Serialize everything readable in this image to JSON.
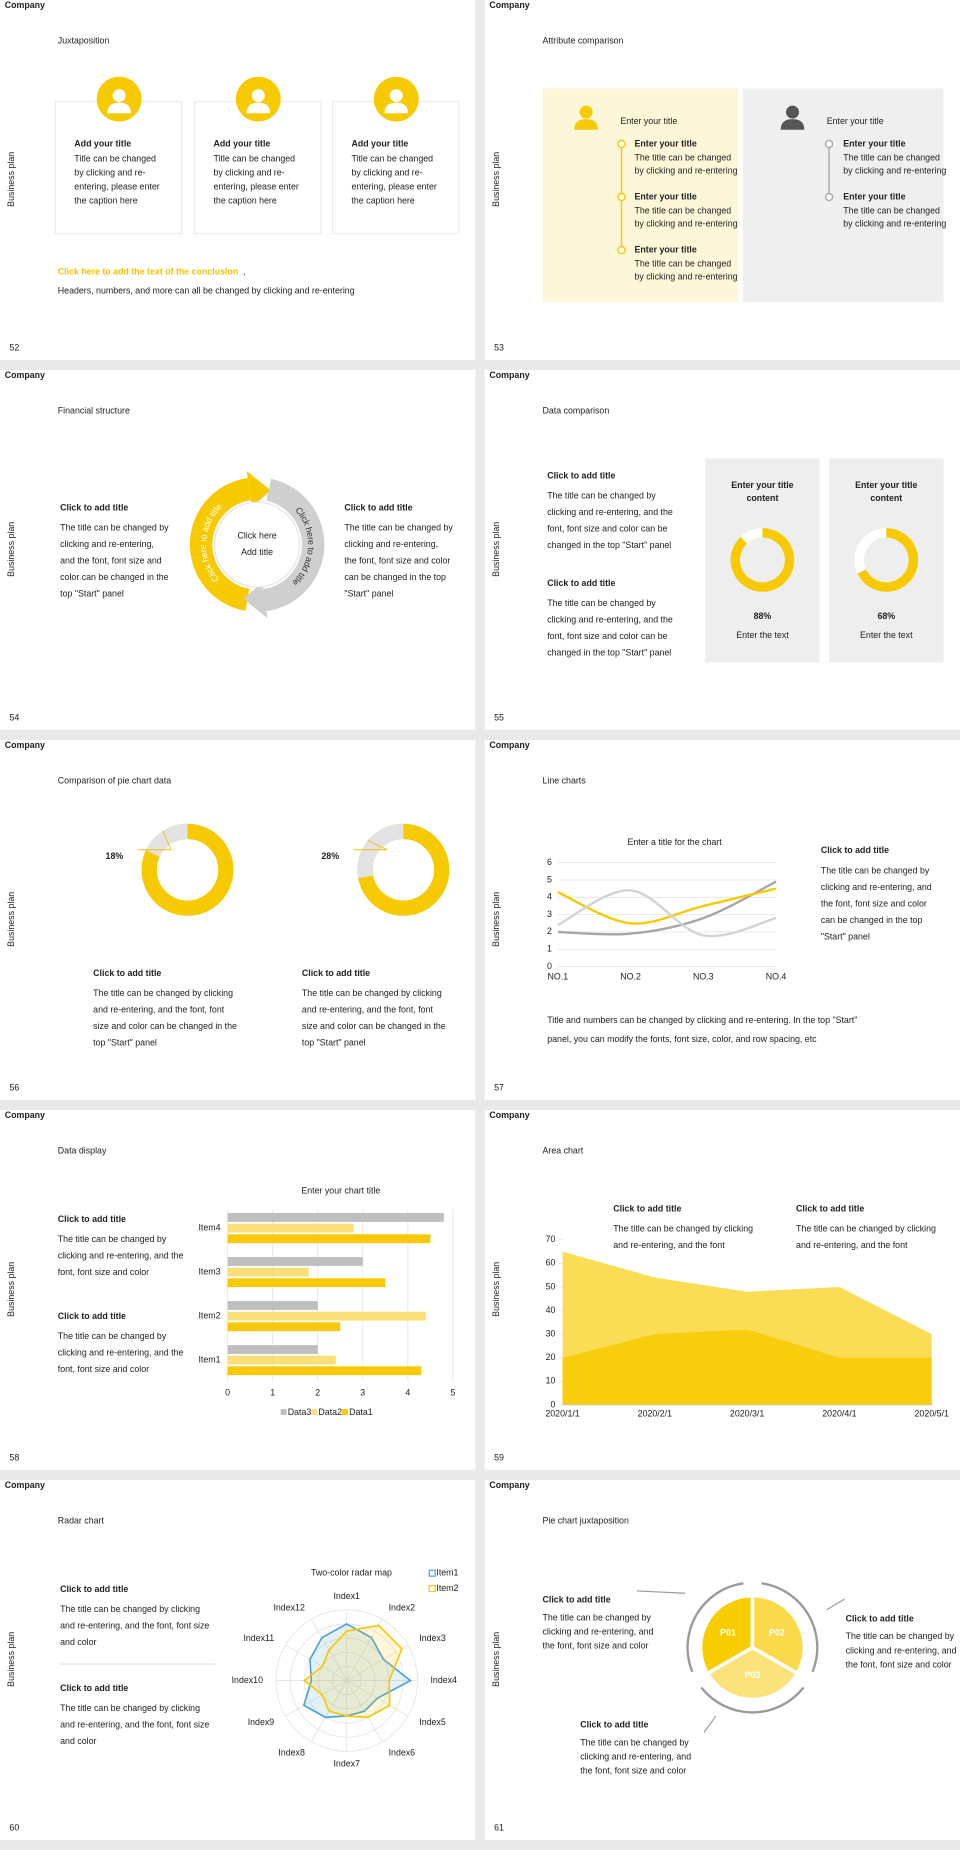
{
  "company_label": "Company",
  "side_label": "Business plan",
  "slides": [
    {
      "number": "52",
      "title": "Juxtaposition",
      "cards": [
        {
          "heading": "Add your title",
          "body": [
            "Title can be changed",
            "by clicking and re-",
            "entering, please enter",
            "the caption here"
          ]
        },
        {
          "heading": "Add your title",
          "body": [
            "Title can be changed",
            "by clicking and re-",
            "entering, please enter",
            "the caption here"
          ]
        },
        {
          "heading": "Add your title",
          "body": [
            "Title can be changed",
            "by clicking and re-",
            "entering, please enter",
            "the caption here"
          ]
        }
      ],
      "conclusion": "Click here to add the text of the conclusion",
      "conclusion_mark": ",",
      "note": "Headers, numbers, and more can all be changed by clicking and re-entering"
    },
    {
      "number": "53",
      "title": "Attribute comparison",
      "panels": [
        {
          "heading": "Enter your title",
          "items": [
            {
              "title": "Enter your title",
              "body": [
                "The title can be changed",
                "by clicking and re-entering"
              ]
            },
            {
              "title": "Enter your title",
              "body": [
                "The title can be changed",
                "by clicking and re-entering"
              ]
            },
            {
              "title": "Enter your title",
              "body": [
                "The title can be changed",
                "by clicking and re-entering"
              ]
            }
          ]
        },
        {
          "heading": "Enter your title",
          "items": [
            {
              "title": "Enter your title",
              "body": [
                "The title can be changed",
                "by clicking and re-entering"
              ]
            },
            {
              "title": "Enter your title",
              "body": [
                "The title can be changed",
                "by clicking and re-entering"
              ]
            }
          ]
        }
      ]
    },
    {
      "number": "54",
      "title": "Financial structure",
      "blocks": [
        {
          "heading": "Click to add title",
          "body": [
            "The title can be changed by",
            "clicking and re-entering,",
            "and the font, font size and",
            "color can be changed in the",
            "top \"Start\" panel"
          ]
        },
        {
          "heading": "Click to add title",
          "body": [
            "The title can be changed by",
            "clicking and re-entering,",
            "the font, font size and color",
            "can be changed in the top",
            "\"Start\" panel"
          ]
        }
      ],
      "ring_text": [
        "Click here to add title",
        "Click here to add title"
      ],
      "center": [
        "Click here",
        "Add title"
      ]
    },
    {
      "number": "55",
      "title": "Data comparison",
      "blocks": [
        {
          "heading": "Click to add title",
          "body": [
            "The title can be changed by",
            "clicking and re-entering, and the",
            "font, font size and color can be",
            "changed in the top \"Start\" panel"
          ]
        },
        {
          "heading": "Click to add title",
          "body": [
            "The title can be changed by",
            "clicking and re-entering, and the",
            "font, font size and color can be",
            "changed in the top \"Start\" panel"
          ]
        }
      ],
      "cards": [
        {
          "heading": [
            "Enter your title",
            "content"
          ],
          "value": 88,
          "value_label": "88%",
          "caption": "Enter the text"
        },
        {
          "heading": [
            "Enter your title",
            "content"
          ],
          "value": 68,
          "value_label": "68%",
          "caption": "Enter the text"
        }
      ]
    },
    {
      "number": "56",
      "title": "Comparison of pie chart data",
      "donuts": [
        {
          "value": 18,
          "value_label": "18%",
          "heading": "Click to add title",
          "body": [
            "The title can be changed by clicking",
            "and re-entering, and the font, font",
            "size and color can be changed in the",
            "top \"Start\" panel"
          ]
        },
        {
          "value": 28,
          "value_label": "28%",
          "heading": "Click to add title",
          "body": [
            "The title can be changed by clicking",
            "and re-entering, and the font, font",
            "size and color can be changed in the",
            "top \"Start\" panel"
          ]
        }
      ]
    },
    {
      "number": "57",
      "title": "Line charts",
      "chart": {
        "type": "line",
        "title": "Enter a title for the chart",
        "categories": [
          "NO.1",
          "NO.2",
          "NO.3",
          "NO.4"
        ],
        "series": [
          {
            "color": "#a6a6a6",
            "values": [
              2,
              1.9,
              2.8,
              4.9
            ]
          },
          {
            "color": "#f6c900",
            "values": [
              4.3,
              2.5,
              3.5,
              4.5
            ]
          },
          {
            "color": "#d3d3d3",
            "values": [
              2.4,
              4.4,
              1.8,
              2.8
            ]
          }
        ],
        "ylim": [
          0,
          6
        ],
        "yticks": [
          0,
          1,
          2,
          3,
          4,
          5,
          6
        ],
        "grid": true
      },
      "block": {
        "heading": "Click to add title",
        "body": [
          "The title can be changed by",
          "clicking and re-entering, and",
          "the font, font size and color",
          "can be changed in the top",
          "\"Start\" panel"
        ]
      },
      "note": [
        "Title and numbers can be changed by clicking and re-entering. In the top \"Start\"",
        "panel, you can modify the fonts, font size, color, and row spacing, etc"
      ]
    },
    {
      "number": "58",
      "title": "Data display",
      "blocks": [
        {
          "heading": "Click to add title",
          "body": [
            "The title can be changed by",
            "clicking and re-entering, and the",
            "font, font size and color"
          ]
        },
        {
          "heading": "Click to add title",
          "body": [
            "The title can be changed by",
            "clicking and re-entering, and the",
            "font, font size and color"
          ]
        }
      ],
      "chart": {
        "type": "bar",
        "orientation": "horizontal",
        "title": "Enter your chart title",
        "categories": [
          "Item1",
          "Item2",
          "Item3",
          "Item4"
        ],
        "series": [
          {
            "name": "Data3",
            "color": "#bfbfbf",
            "values": [
              2,
              2,
              3,
              4.8
            ]
          },
          {
            "name": "Data2",
            "color": "#fbe07a",
            "values": [
              2.4,
              4.4,
              1.8,
              2.8
            ]
          },
          {
            "name": "Data1",
            "color": "#f6c900",
            "values": [
              4.3,
              2.5,
              3.5,
              4.5
            ]
          }
        ],
        "xlim": [
          0,
          5
        ],
        "xticks": [
          0,
          1,
          2,
          3,
          4,
          5
        ],
        "grid": true
      }
    },
    {
      "number": "59",
      "title": "Area chart",
      "blocks": [
        {
          "heading": "Click to add title",
          "body": [
            "The title can be changed by clicking",
            "and re-entering, and the font"
          ]
        },
        {
          "heading": "Click to add title",
          "body": [
            "The title can be changed by clicking",
            "and re-entering, and the font"
          ]
        }
      ],
      "chart": {
        "type": "area",
        "categories": [
          "2020/1/1",
          "2020/2/1",
          "2020/3/1",
          "2020/4/1",
          "2020/5/1"
        ],
        "series": [
          {
            "color": "#fbdd55",
            "values": [
              65,
              54,
              48,
              50,
              30
            ]
          },
          {
            "color": "#f8cd0e",
            "values": [
              20,
              30,
              32,
              20,
              20
            ]
          }
        ],
        "ylim": [
          0,
          70
        ],
        "yticks": [
          0,
          10,
          20,
          30,
          40,
          50,
          60,
          70
        ]
      }
    },
    {
      "number": "60",
      "title": "Radar chart",
      "blocks": [
        {
          "heading": "Click to add title",
          "body": [
            "The title can be changed by clicking",
            "and re-entering, and the font, font size",
            "and color"
          ]
        },
        {
          "heading": "Click to add title",
          "body": [
            "The title can be changed by clicking",
            "and re-entering, and the font, font size",
            "and color"
          ]
        }
      ],
      "chart": {
        "type": "radar",
        "title": "Two-color radar map",
        "categories": [
          "Index1",
          "Index2",
          "Index3",
          "Index4",
          "Index5",
          "Index6",
          "Index7",
          "Index8",
          "Index9",
          "Index10",
          "Index11",
          "Index12"
        ],
        "series": [
          {
            "name": "Item1",
            "color": "#4ba3d6",
            "values": [
              4,
              3.5,
              3,
              4.5,
              2.5,
              2.5,
              2.5,
              3,
              3.5,
              2.5,
              3,
              3.5
            ]
          },
          {
            "name": "Item2",
            "color": "#f6c900",
            "values": [
              3.5,
              4.5,
              4.5,
              3,
              3.5,
              3,
              2.5,
              2.5,
              2,
              3,
              2,
              2.5
            ]
          }
        ],
        "rlim": [
          0,
          5
        ]
      }
    },
    {
      "number": "61",
      "title": "Pie chart juxtaposition",
      "blocks": [
        {
          "heading": "Click to add title",
          "body": [
            "The title can be changed by",
            "clicking and re-entering, and",
            "the font, font size and color"
          ]
        },
        {
          "heading": "Click to add title",
          "body": [
            "The title can be changed by",
            "clicking and re-entering, and",
            "the font, font size and color"
          ]
        },
        {
          "heading": "Click to add title",
          "body": [
            "The title can be changed by",
            "clicking and re-entering, and",
            "the font, font size and color"
          ]
        }
      ],
      "segments": [
        "P01",
        "P02",
        "P03"
      ]
    }
  ]
}
